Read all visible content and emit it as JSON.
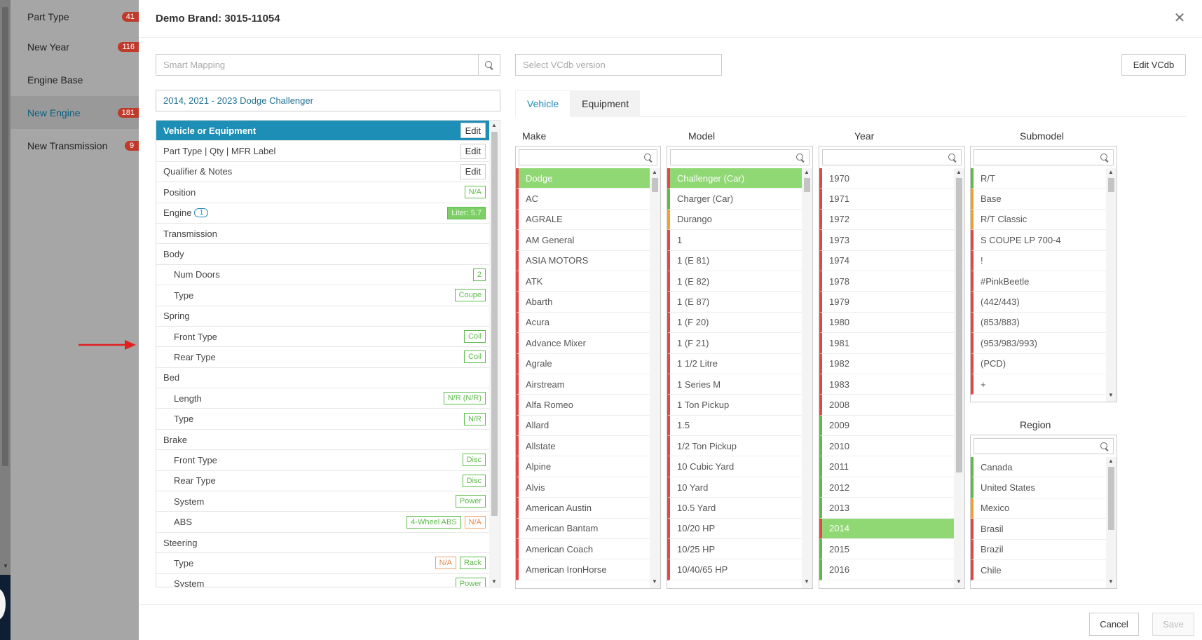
{
  "bg_sidebar": {
    "items": [
      {
        "label": "Part Type",
        "badge": "41"
      },
      {
        "label": "New Year",
        "badge": "116"
      },
      {
        "label": "Engine Base",
        "badge": ""
      },
      {
        "label": "New Engine",
        "badge": "181"
      },
      {
        "label": "New Transmission",
        "badge": "9"
      }
    ]
  },
  "modal": {
    "title": "Demo Brand: 3015-11054",
    "close": "✕",
    "smart_mapping_placeholder": "Smart Mapping",
    "vcdb_placeholder": "Select VCdb version",
    "edit_vcdb": "Edit VCdb",
    "vehicle_string": "2014, 2021 - 2023 Dodge Challenger"
  },
  "left_list": {
    "rows": [
      {
        "label": "Vehicle or Equipment",
        "edit": "Edit",
        "type": "hl"
      },
      {
        "label": "Part Type | Qty | MFR Label",
        "edit": "Edit"
      },
      {
        "label": "Qualifier & Notes",
        "edit": "Edit"
      },
      {
        "label": "Position",
        "tags": [
          {
            "text": "N/A"
          }
        ]
      },
      {
        "label": "Engine",
        "info": "1",
        "tags": [
          {
            "text": "Liter: 5.7",
            "style": "fill"
          }
        ]
      },
      {
        "label": "Transmission"
      },
      {
        "label": "Body"
      },
      {
        "label": "Num Doors",
        "sub": true,
        "tags": [
          {
            "text": "2"
          }
        ]
      },
      {
        "label": "Type",
        "sub": true,
        "tags": [
          {
            "text": "Coupe"
          }
        ]
      },
      {
        "label": "Spring"
      },
      {
        "label": "Front Type",
        "sub": true,
        "tags": [
          {
            "text": "Coil"
          }
        ]
      },
      {
        "label": "Rear Type",
        "sub": true,
        "tags": [
          {
            "text": "Coil"
          }
        ]
      },
      {
        "label": "Bed"
      },
      {
        "label": "Length",
        "sub": true,
        "tags": [
          {
            "text": "N/R (N/R)"
          }
        ]
      },
      {
        "label": "Type",
        "sub": true,
        "tags": [
          {
            "text": "N/R"
          }
        ]
      },
      {
        "label": "Brake"
      },
      {
        "label": "Front Type",
        "sub": true,
        "tags": [
          {
            "text": "Disc"
          }
        ]
      },
      {
        "label": "Rear Type",
        "sub": true,
        "tags": [
          {
            "text": "Disc"
          }
        ]
      },
      {
        "label": "System",
        "sub": true,
        "tags": [
          {
            "text": "Power"
          }
        ]
      },
      {
        "label": "ABS",
        "sub": true,
        "tags": [
          {
            "text": "4-Wheel ABS"
          },
          {
            "text": "N/A",
            "style": "orange"
          }
        ]
      },
      {
        "label": "Steering"
      },
      {
        "label": "Type",
        "sub": true,
        "tags": [
          {
            "text": "N/A",
            "style": "orange"
          },
          {
            "text": "Rack"
          }
        ]
      },
      {
        "label": "System",
        "sub": true,
        "tags": [
          {
            "text": "Power"
          }
        ]
      }
    ]
  },
  "tabs": [
    {
      "label": "Vehicle",
      "active": true
    },
    {
      "label": "Equipment",
      "active": false
    }
  ],
  "columns": {
    "make": {
      "title": "Make",
      "items": [
        {
          "t": "Dodge",
          "c": "sel"
        },
        {
          "t": "AC"
        },
        {
          "t": "AGRALE"
        },
        {
          "t": "AM General"
        },
        {
          "t": "ASIA MOTORS"
        },
        {
          "t": "ATK"
        },
        {
          "t": "Abarth"
        },
        {
          "t": "Acura"
        },
        {
          "t": "Advance Mixer"
        },
        {
          "t": "Agrale"
        },
        {
          "t": "Airstream"
        },
        {
          "t": "Alfa Romeo"
        },
        {
          "t": "Allard"
        },
        {
          "t": "Allstate"
        },
        {
          "t": "Alpine"
        },
        {
          "t": "Alvis"
        },
        {
          "t": "American Austin"
        },
        {
          "t": "American Bantam"
        },
        {
          "t": "American Coach"
        },
        {
          "t": "American IronHorse"
        }
      ]
    },
    "model": {
      "title": "Model",
      "items": [
        {
          "t": "Challenger (Car)",
          "c": "sel"
        },
        {
          "t": "Charger (Car)",
          "c": "g"
        },
        {
          "t": "Durango",
          "c": "o"
        },
        {
          "t": "1"
        },
        {
          "t": "1 (E 81)"
        },
        {
          "t": "1 (E 82)"
        },
        {
          "t": "1 (E 87)"
        },
        {
          "t": "1 (F 20)"
        },
        {
          "t": "1 (F 21)"
        },
        {
          "t": "1 1/2 Litre"
        },
        {
          "t": "1 Series M"
        },
        {
          "t": "1 Ton Pickup"
        },
        {
          "t": "1.5"
        },
        {
          "t": "1/2 Ton Pickup"
        },
        {
          "t": "10 Cubic Yard"
        },
        {
          "t": "10 Yard"
        },
        {
          "t": "10.5 Yard"
        },
        {
          "t": "10/20 HP"
        },
        {
          "t": "10/25 HP"
        },
        {
          "t": "10/40/65 HP"
        }
      ]
    },
    "year": {
      "title": "Year",
      "items": [
        {
          "t": "1970"
        },
        {
          "t": "1971"
        },
        {
          "t": "1972"
        },
        {
          "t": "1973"
        },
        {
          "t": "1974"
        },
        {
          "t": "1978"
        },
        {
          "t": "1979"
        },
        {
          "t": "1980"
        },
        {
          "t": "1981"
        },
        {
          "t": "1982"
        },
        {
          "t": "1983"
        },
        {
          "t": "2008"
        },
        {
          "t": "2009",
          "c": "g"
        },
        {
          "t": "2010",
          "c": "g"
        },
        {
          "t": "2011",
          "c": "g"
        },
        {
          "t": "2012",
          "c": "g"
        },
        {
          "t": "2013",
          "c": "g"
        },
        {
          "t": "2014",
          "c": "sel"
        },
        {
          "t": "2015",
          "c": "g"
        },
        {
          "t": "2016",
          "c": "g"
        }
      ]
    },
    "submodel": {
      "title": "Submodel",
      "items": [
        {
          "t": "R/T",
          "c": "g"
        },
        {
          "t": "Base",
          "c": "o"
        },
        {
          "t": "R/T Classic",
          "c": "o"
        },
        {
          "t": "S COUPE LP 700-4"
        },
        {
          "t": "!"
        },
        {
          "t": "#PinkBeetle"
        },
        {
          "t": "(442/443)"
        },
        {
          "t": "(853/883)"
        },
        {
          "t": "(953/983/993)"
        },
        {
          "t": "(PCD)"
        },
        {
          "t": "+"
        }
      ]
    },
    "region": {
      "title": "Region",
      "items": [
        {
          "t": "Canada",
          "c": "g"
        },
        {
          "t": "United States",
          "c": "g"
        },
        {
          "t": "Mexico",
          "c": "o"
        },
        {
          "t": "Brasil"
        },
        {
          "t": "Brazil"
        },
        {
          "t": "Chile"
        }
      ]
    }
  },
  "footer": {
    "cancel": "Cancel",
    "save": "Save"
  }
}
